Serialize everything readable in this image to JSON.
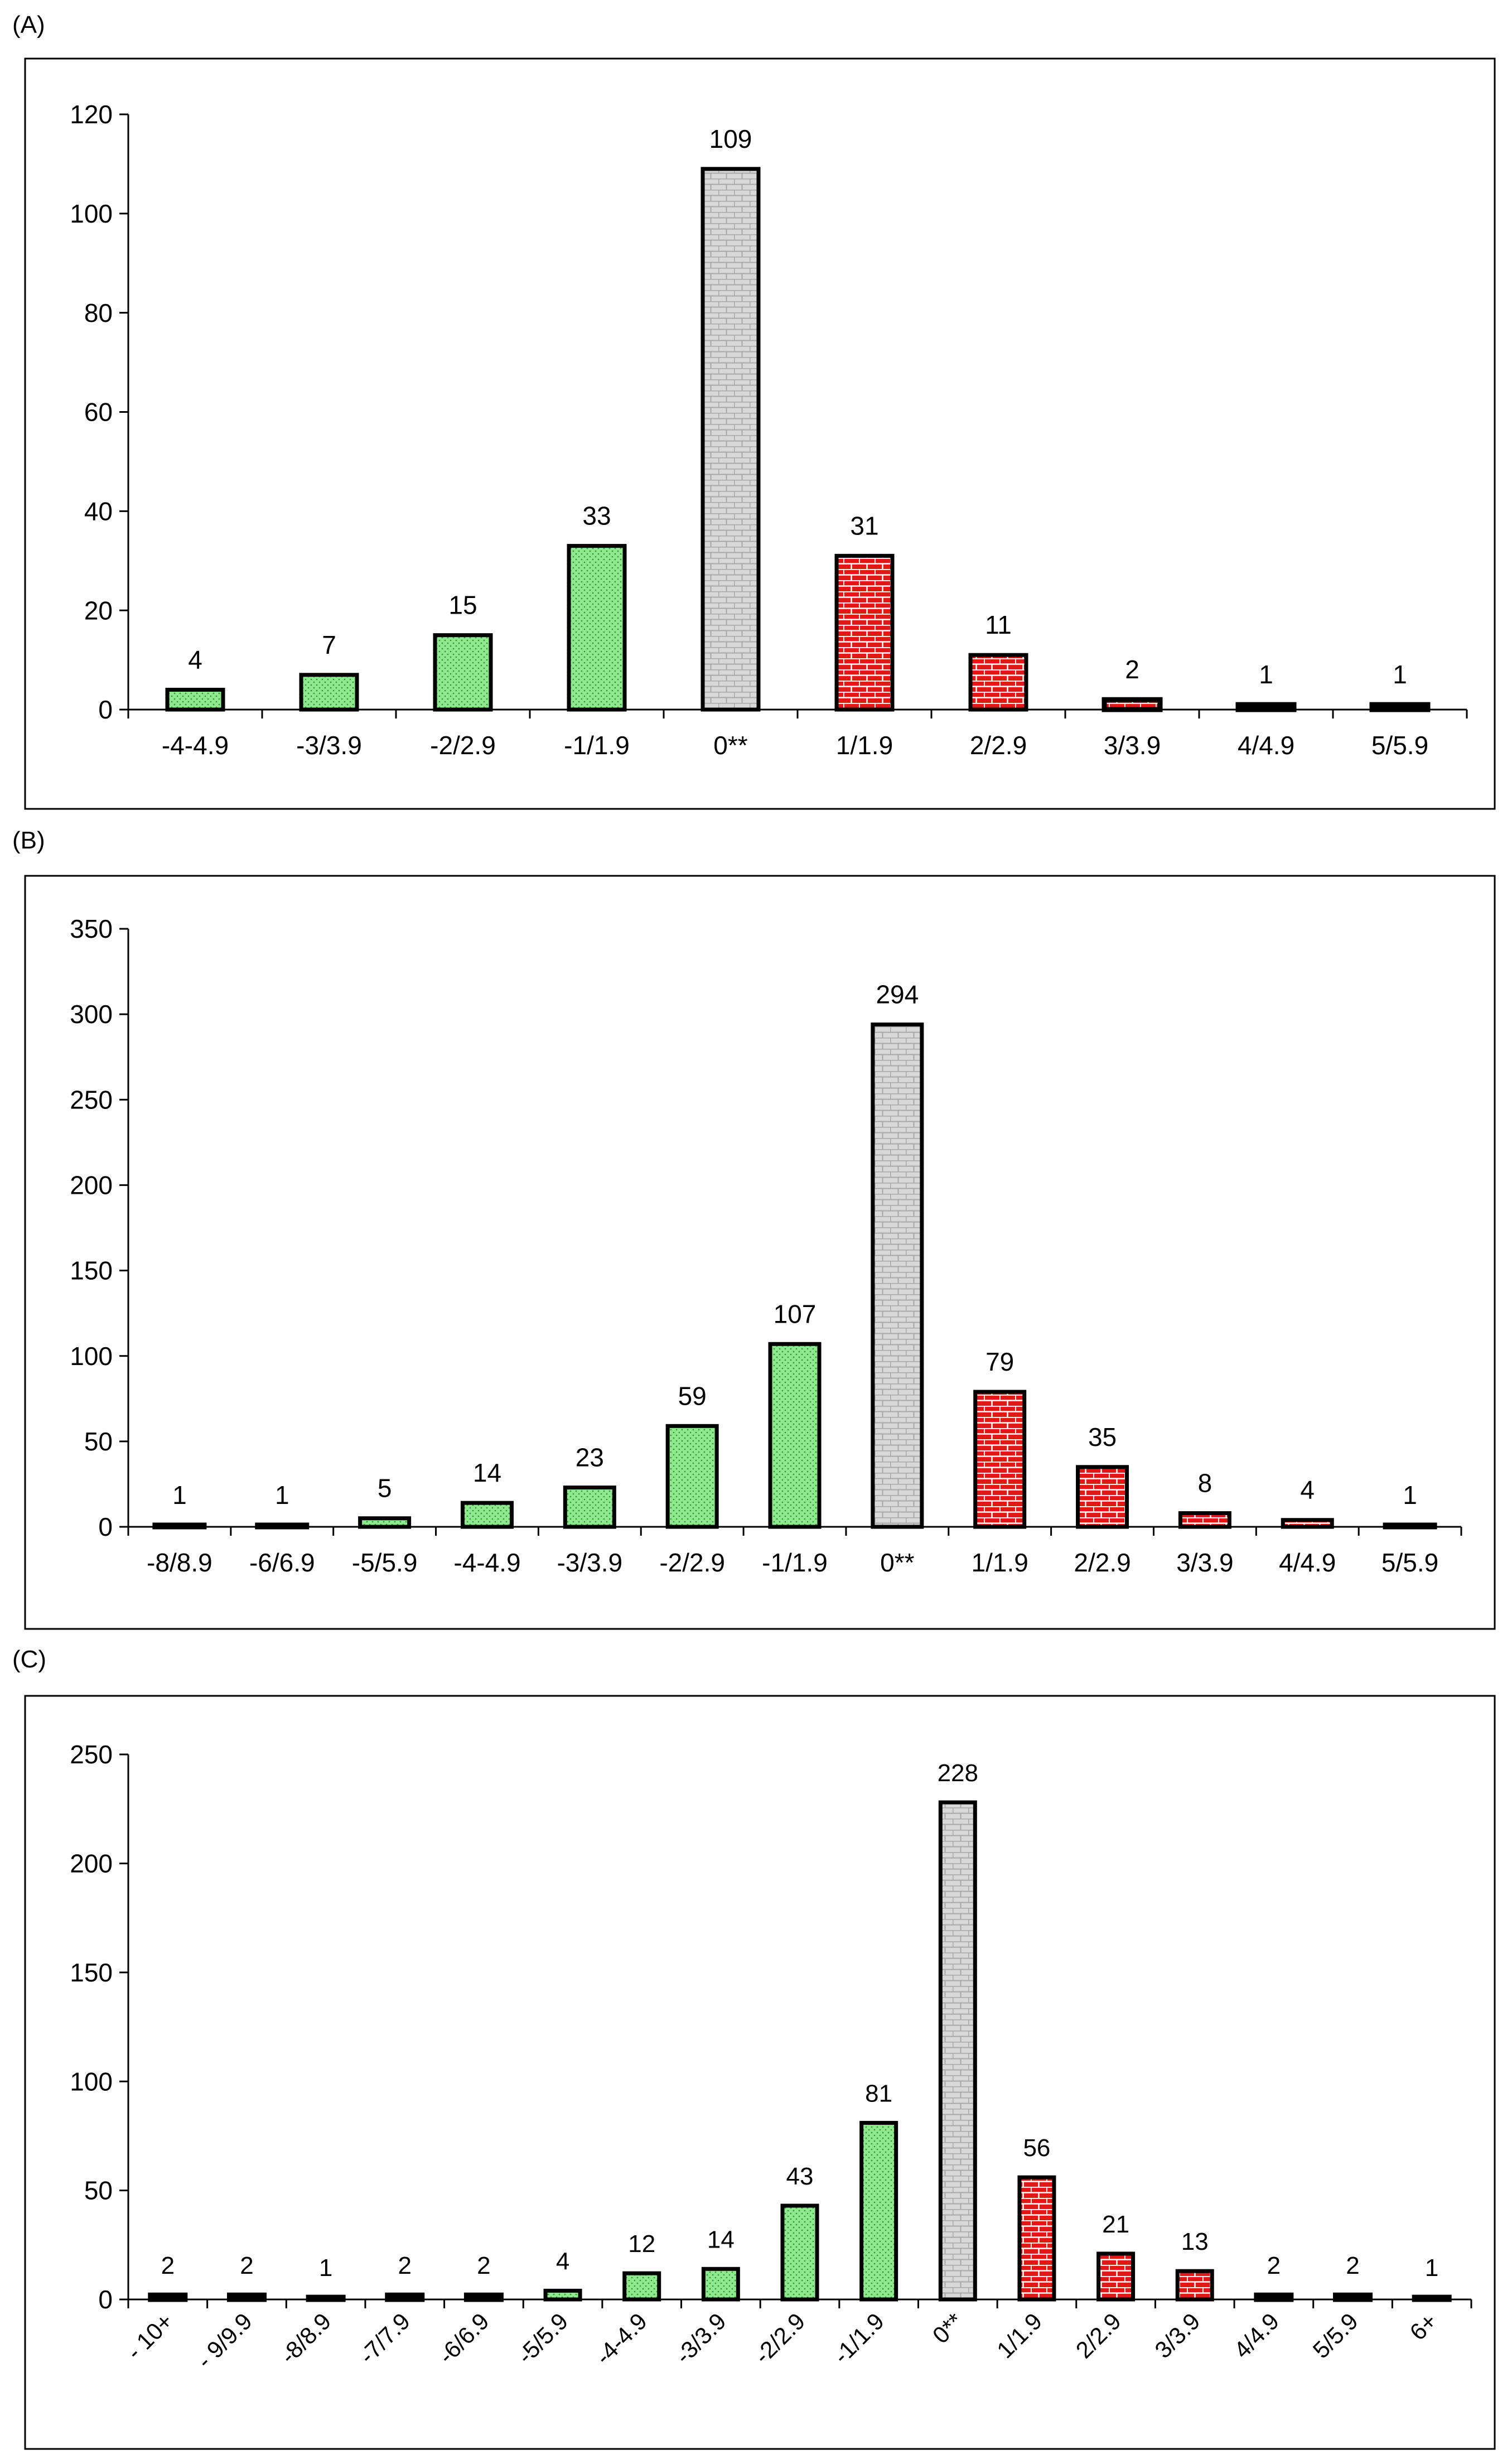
{
  "colors": {
    "negative": "#8fe98f",
    "zero": "#d8d8d8",
    "positive": "#e01818",
    "frame": "#000000"
  },
  "chart_data": [
    {
      "type": "bar",
      "panel": "(A)",
      "categories": [
        "-4-4.9",
        "-3/3.9",
        "-2/2.9",
        "-1/1.9",
        "0**",
        "1/1.9",
        "2/2.9",
        "3/3.9",
        "4/4.9",
        "5/5.9"
      ],
      "values": [
        4,
        7,
        15,
        33,
        109,
        31,
        11,
        2,
        1,
        1
      ],
      "fills": [
        "negative",
        "negative",
        "negative",
        "negative",
        "zero",
        "positive",
        "positive",
        "positive",
        "positive",
        "positive"
      ],
      "ylim": [
        0,
        120
      ],
      "yticks": [
        0,
        20,
        40,
        60,
        80,
        100,
        120
      ],
      "rotate_xlabels": false,
      "grid": false
    },
    {
      "type": "bar",
      "panel": "(B)",
      "categories": [
        "-8/8.9",
        "-6/6.9",
        "-5/5.9",
        "-4-4.9",
        "-3/3.9",
        "-2/2.9",
        "-1/1.9",
        "0**",
        "1/1.9",
        "2/2.9",
        "3/3.9",
        "4/4.9",
        "5/5.9"
      ],
      "values": [
        1,
        1,
        5,
        14,
        23,
        59,
        107,
        294,
        79,
        35,
        8,
        4,
        1
      ],
      "fills": [
        "negative",
        "negative",
        "negative",
        "negative",
        "negative",
        "negative",
        "negative",
        "zero",
        "positive",
        "positive",
        "positive",
        "positive",
        "positive"
      ],
      "ylim": [
        0,
        350
      ],
      "yticks": [
        0,
        50,
        100,
        150,
        200,
        250,
        300,
        350
      ],
      "rotate_xlabels": false,
      "grid": false
    },
    {
      "type": "bar",
      "panel": "(C)",
      "categories": [
        "- 10+",
        "- 9/9.9",
        "-8/8.9",
        "-7/7.9",
        "-6/6.9",
        "-5/5.9",
        "-4-4.9",
        "-3/3.9",
        "-2/2.9",
        "-1/1.9",
        "0**",
        "1/1.9",
        "2/2.9",
        "3/3.9",
        "4/4.9",
        "5/5.9",
        "6+"
      ],
      "values": [
        2,
        2,
        1,
        2,
        2,
        4,
        12,
        14,
        43,
        81,
        228,
        56,
        21,
        13,
        2,
        2,
        1
      ],
      "fills": [
        "negative",
        "negative",
        "negative",
        "negative",
        "negative",
        "negative",
        "negative",
        "negative",
        "negative",
        "negative",
        "zero",
        "positive",
        "positive",
        "positive",
        "positive",
        "positive",
        "positive"
      ],
      "ylim": [
        0,
        250
      ],
      "yticks": [
        0,
        50,
        100,
        150,
        200,
        250
      ],
      "rotate_xlabels": true,
      "grid": false
    }
  ]
}
